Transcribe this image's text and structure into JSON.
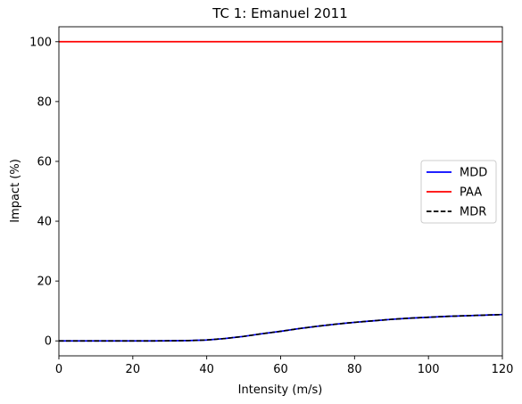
{
  "chart_data": {
    "type": "line",
    "title": "TC 1: Emanuel 2011",
    "xlabel": "Intensity (m/s)",
    "ylabel": "Impact (%)",
    "xlim": [
      0,
      120
    ],
    "ylim": [
      -5,
      105
    ],
    "xticks": [
      0,
      20,
      40,
      60,
      80,
      100,
      120
    ],
    "yticks": [
      0,
      20,
      40,
      60,
      80,
      100
    ],
    "grid": false,
    "legend_position": "center-right",
    "x": [
      0,
      10,
      20,
      25,
      30,
      35,
      40,
      45,
      50,
      55,
      60,
      65,
      70,
      75,
      80,
      85,
      90,
      95,
      100,
      105,
      110,
      115,
      120
    ],
    "series": [
      {
        "name": "MDD",
        "color": "#0000ff",
        "style": "solid",
        "values": [
          0,
          0,
          0,
          0,
          0.02,
          0.1,
          0.3,
          0.8,
          1.5,
          2.4,
          3.2,
          4.1,
          4.9,
          5.6,
          6.2,
          6.7,
          7.2,
          7.6,
          7.9,
          8.2,
          8.4,
          8.6,
          8.8
        ]
      },
      {
        "name": "PAA",
        "color": "#ff0000",
        "style": "solid",
        "values": [
          100,
          100,
          100,
          100,
          100,
          100,
          100,
          100,
          100,
          100,
          100,
          100,
          100,
          100,
          100,
          100,
          100,
          100,
          100,
          100,
          100,
          100,
          100
        ]
      },
      {
        "name": "MDR",
        "color": "#000000",
        "style": "dashed",
        "values": [
          0,
          0,
          0,
          0,
          0.02,
          0.1,
          0.3,
          0.8,
          1.5,
          2.4,
          3.2,
          4.1,
          4.9,
          5.6,
          6.2,
          6.7,
          7.2,
          7.6,
          7.9,
          8.2,
          8.4,
          8.6,
          8.8
        ]
      }
    ]
  }
}
